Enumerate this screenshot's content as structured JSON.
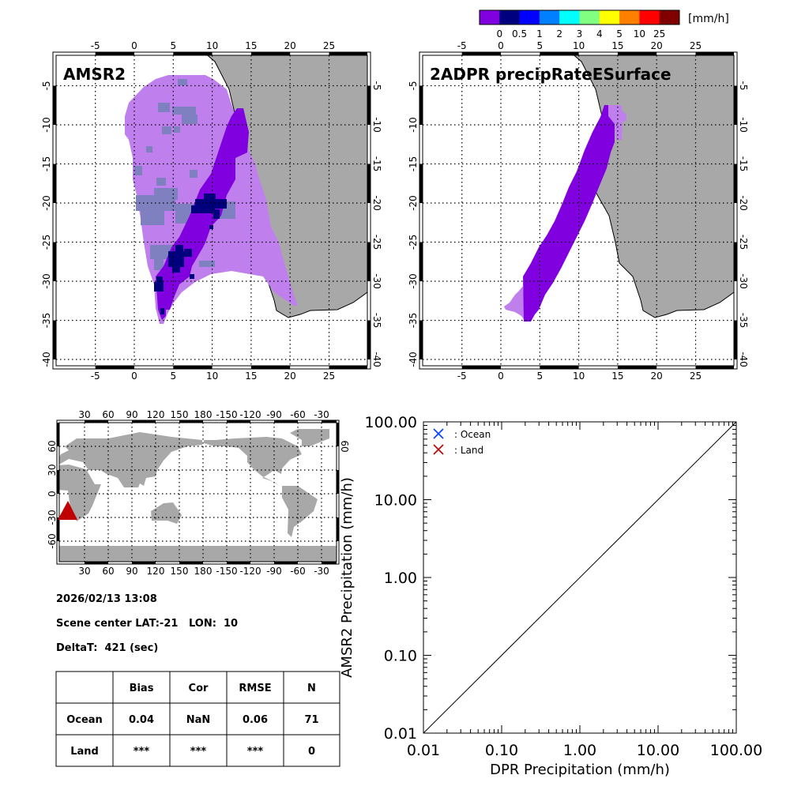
{
  "colorbar": {
    "unit": "[mm/h]",
    "labels": [
      "0",
      "0.5",
      "1",
      "2",
      "3",
      "4",
      "5",
      "10",
      "25"
    ],
    "colors": [
      "#8000e0",
      "#00007f",
      "#0000ff",
      "#0080ff",
      "#00ffff",
      "#80ff80",
      "#ffff00",
      "#ff8000",
      "#ff0000",
      "#800000"
    ]
  },
  "colors": {
    "land": "#a8a8a8",
    "light_precip": "#bf80ee",
    "grayblue": "#7f80c0",
    "ocean_marker": "#0040ff",
    "land_marker": "#c00000",
    "scene_marker": "#c00000"
  },
  "map_left": {
    "title": "AMSR2",
    "lon_ticks": [
      "-5",
      "0",
      "5",
      "10",
      "15",
      "20",
      "25"
    ],
    "lat_ticks": [
      "-5",
      "-10",
      "-15",
      "-20",
      "-25",
      "-30",
      "-35",
      "-40"
    ]
  },
  "map_right": {
    "title": "2ADPR precipRateESurface",
    "lon_ticks": [
      "-5",
      "0",
      "5",
      "10",
      "15",
      "20",
      "25"
    ],
    "lat_ticks": [
      "-5",
      "-10",
      "-15",
      "-20",
      "-25",
      "-30",
      "-35",
      "-40"
    ]
  },
  "world_map": {
    "lon_ticks": [
      "30",
      "60",
      "90",
      "120",
      "150",
      "180",
      "-150",
      "-120",
      "-90",
      "-60",
      "-30"
    ],
    "lat_ticks": [
      "60",
      "30",
      "0",
      "-30",
      "-60"
    ],
    "right_lat_tick": "60"
  },
  "info": {
    "datetime": "2026/02/13 13:08",
    "scene_center": "Scene center LAT:-21   LON:  10",
    "delta_t": "DeltaT:  421 (sec)"
  },
  "stats_table": {
    "headers": [
      "",
      "Bias",
      "Cor",
      "RMSE",
      "N"
    ],
    "rows": [
      [
        "Ocean",
        "0.04",
        "NaN",
        "0.06",
        "71"
      ],
      [
        "Land",
        "***",
        "***",
        "***",
        "0"
      ]
    ]
  },
  "chart_data": {
    "type": "scatter",
    "xlabel": "DPR Precipitation (mm/h)",
    "ylabel": "AMSR2 Precipitation (mm/h)",
    "xscale": "log",
    "yscale": "log",
    "xlim": [
      0.01,
      100
    ],
    "ylim": [
      0.01,
      100
    ],
    "x_tick_labels": [
      "0.01",
      "0.10",
      "1.00",
      "10.00",
      "100.00"
    ],
    "y_tick_labels": [
      "0.01",
      "0.10",
      "1.00",
      "10.00",
      "100.00"
    ],
    "legend": [
      {
        "label": ": Ocean",
        "marker": "x"
      },
      {
        "label": ": Land",
        "marker": "x"
      }
    ],
    "legend_position": "top-left",
    "reference_line": "1:1",
    "series": [
      {
        "name": "Ocean",
        "points": []
      },
      {
        "name": "Land",
        "points": []
      }
    ]
  }
}
